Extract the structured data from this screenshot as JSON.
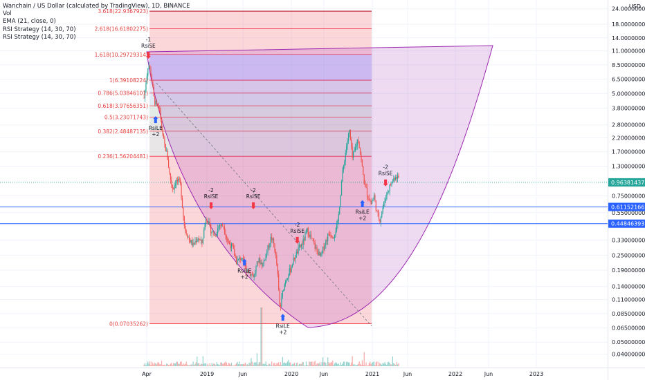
{
  "legend": {
    "title": "Wanchain / US Dollar (calculated by TradingView), 1D, BINANCE",
    "vol": "Vol",
    "ema": "EMA (21, close, 0)",
    "rsi1": "RSI Strategy (14, 30, 70)",
    "rsi2": "RSI Strategy (14, 30, 70)"
  },
  "currency": "USD",
  "colors": {
    "up": "#26a69a",
    "down": "#ef5350",
    "fib_line": "#f23645",
    "cup_fill": "#9c27b0",
    "current_price": "#26a69a",
    "support": "#2962ff"
  },
  "chart_data": {
    "type": "candlestick",
    "scale": "log",
    "ylim": [
      0.0355,
      27.5
    ],
    "x_ticks": [
      "Apr",
      "2019",
      "Jun",
      "2020",
      "Jun",
      "2021",
      "Jun",
      "2022",
      "Jun",
      "2023"
    ],
    "y_ticks": [
      "24.00000000",
      "18.00000000",
      "14.00000000",
      "11.00000000",
      "8.50000000",
      "6.50000000",
      "5.00000000",
      "3.80000000",
      "2.80000000",
      "2.20000000",
      "1.70000000",
      "1.30000000",
      "0.75000000",
      "0.55000000",
      "0.33000000",
      "0.25000000",
      "0.19000000",
      "0.14000000",
      "0.11000000",
      "0.08500000",
      "0.06500000",
      "0.05000000",
      "0.04000000"
    ],
    "price_labels": [
      {
        "label": "0.96381437",
        "value": 0.9638,
        "color": "#26a69a"
      },
      {
        "label": "0.61152166",
        "value": 0.6115,
        "color": "#2962ff"
      },
      {
        "label": "0.44846393",
        "value": 0.4485,
        "color": "#2962ff"
      }
    ],
    "fib_levels": [
      {
        "label": "3.618(22.9367923)",
        "value": 22.94
      },
      {
        "label": "2.618(16.61802275)",
        "value": 16.62
      },
      {
        "label": "1.618(10.29729314)",
        "value": 10.3
      },
      {
        "label": "1(6.39108224)",
        "value": 6.391
      },
      {
        "label": "0.786(5.03846101)",
        "value": 5.038
      },
      {
        "label": "0.618(3.97656351)",
        "value": 3.977
      },
      {
        "label": "0.5(3.23071743)",
        "value": 3.231
      },
      {
        "label": "0.382(2.48487135)",
        "value": 2.485
      },
      {
        "label": "0.236(1.56204481)",
        "value": 1.562
      },
      {
        "label": "0(0.07035262)",
        "value": 0.07035
      }
    ],
    "fib_zone_colors": [
      "rgba(242,54,69,0.20)",
      "rgba(242,54,69,0.20)",
      "rgba(120,123,255,0.30)",
      "rgba(145,155,215,0.26)",
      "rgba(125,165,205,0.24)",
      "rgba(130,170,150,0.22)",
      "rgba(150,160,145,0.24)",
      "rgba(160,150,150,0.24)",
      "rgba(242,54,69,0.20)"
    ],
    "price_path": [
      [
        0.005,
        4.6
      ],
      [
        0.02,
        8.8
      ],
      [
        0.03,
        7.0
      ],
      [
        0.04,
        4.4
      ],
      [
        0.05,
        3.9
      ],
      [
        0.06,
        3.6
      ],
      [
        0.07,
        2.2
      ],
      [
        0.085,
        1.6
      ],
      [
        0.095,
        1.05
      ],
      [
        0.105,
        0.85
      ],
      [
        0.115,
        1.0
      ],
      [
        0.13,
        0.95
      ],
      [
        0.145,
        0.42
      ],
      [
        0.16,
        0.34
      ],
      [
        0.175,
        0.3
      ],
      [
        0.19,
        0.35
      ],
      [
        0.205,
        0.31
      ],
      [
        0.22,
        0.52
      ],
      [
        0.235,
        0.4
      ],
      [
        0.25,
        0.36
      ],
      [
        0.265,
        0.44
      ],
      [
        0.28,
        0.43
      ],
      [
        0.295,
        0.32
      ],
      [
        0.31,
        0.29
      ],
      [
        0.325,
        0.22
      ],
      [
        0.34,
        0.24
      ],
      [
        0.355,
        0.2
      ],
      [
        0.37,
        0.18
      ],
      [
        0.385,
        0.17
      ],
      [
        0.4,
        0.23
      ],
      [
        0.415,
        0.21
      ],
      [
        0.43,
        0.27
      ],
      [
        0.445,
        0.35
      ],
      [
        0.455,
        0.3
      ],
      [
        0.465,
        0.2
      ],
      [
        0.475,
        0.09
      ],
      [
        0.485,
        0.13
      ],
      [
        0.495,
        0.16
      ],
      [
        0.51,
        0.19
      ],
      [
        0.525,
        0.24
      ],
      [
        0.54,
        0.28
      ],
      [
        0.555,
        0.32
      ],
      [
        0.57,
        0.4
      ],
      [
        0.585,
        0.33
      ],
      [
        0.6,
        0.28
      ],
      [
        0.615,
        0.24
      ],
      [
        0.63,
        0.31
      ],
      [
        0.645,
        0.38
      ],
      [
        0.66,
        0.36
      ],
      [
        0.675,
        0.45
      ],
      [
        0.69,
        1.1
      ],
      [
        0.705,
        1.9
      ],
      [
        0.715,
        2.5
      ],
      [
        0.725,
        1.5
      ],
      [
        0.735,
        1.8
      ],
      [
        0.745,
        2.2
      ],
      [
        0.755,
        1.5
      ],
      [
        0.765,
        1.0
      ],
      [
        0.775,
        0.8
      ],
      [
        0.79,
        0.65
      ],
      [
        0.8,
        0.75
      ],
      [
        0.81,
        0.55
      ],
      [
        0.82,
        0.48
      ],
      [
        0.83,
        0.6
      ],
      [
        0.845,
        0.8
      ],
      [
        0.86,
        0.95
      ],
      [
        0.875,
        1.1
      ],
      [
        0.885,
        1.05
      ]
    ],
    "signals": [
      {
        "label": "RsiSE",
        "count": "-1",
        "dir": "short",
        "x": 0.02,
        "y": 8.9
      },
      {
        "label": "RsiLE",
        "count": "+2",
        "dir": "long",
        "x": 0.045,
        "y": 3.5
      },
      {
        "label": "RsiSE",
        "count": "-2",
        "dir": "short",
        "x": 0.237,
        "y": 0.55
      },
      {
        "label": "RsiSE",
        "count": "-2",
        "dir": "short",
        "x": 0.383,
        "y": 0.55
      },
      {
        "label": "RsiLE",
        "count": "+2",
        "dir": "long",
        "x": 0.352,
        "y": 0.25
      },
      {
        "label": "RsiSE",
        "count": "-2",
        "dir": "short",
        "x": 0.535,
        "y": 0.29
      },
      {
        "label": "RsiLE",
        "count": "+2",
        "dir": "long",
        "x": 0.485,
        "y": 0.09
      },
      {
        "label": "RsiLE",
        "count": "+2",
        "dir": "long",
        "x": 0.76,
        "y": 0.74
      },
      {
        "label": "RsiSE",
        "count": "-2",
        "dir": "short",
        "x": 0.84,
        "y": 0.84
      }
    ]
  }
}
